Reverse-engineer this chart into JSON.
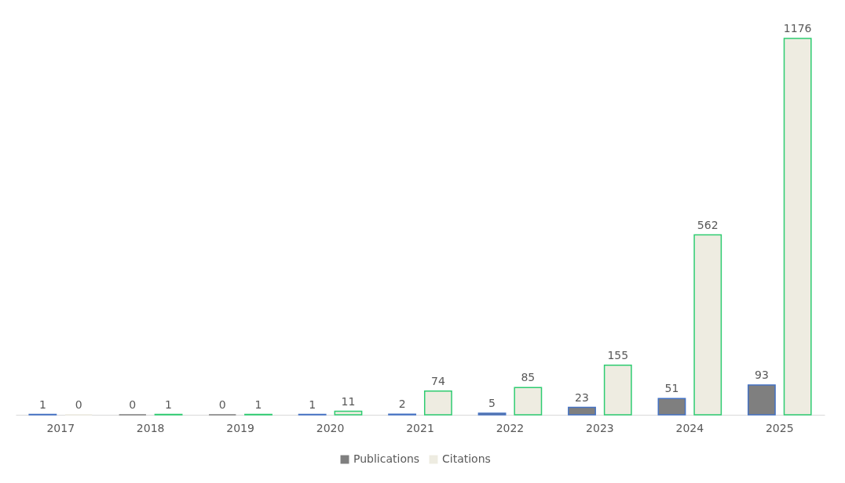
{
  "chart_data": {
    "type": "bar",
    "categories": [
      "2017",
      "2018",
      "2019",
      "2020",
      "2021",
      "2022",
      "2023",
      "2024",
      "2025"
    ],
    "series": [
      {
        "name": "Publications",
        "color": "#7f7f7f",
        "values": [
          1,
          0,
          0,
          1,
          2,
          5,
          23,
          51,
          93
        ]
      },
      {
        "name": "Citations",
        "color": "#eeece1",
        "values": [
          0,
          1,
          1,
          11,
          74,
          85,
          155,
          562,
          1176
        ]
      }
    ],
    "data_labels": true,
    "legend": "bottom",
    "grid": false
  }
}
